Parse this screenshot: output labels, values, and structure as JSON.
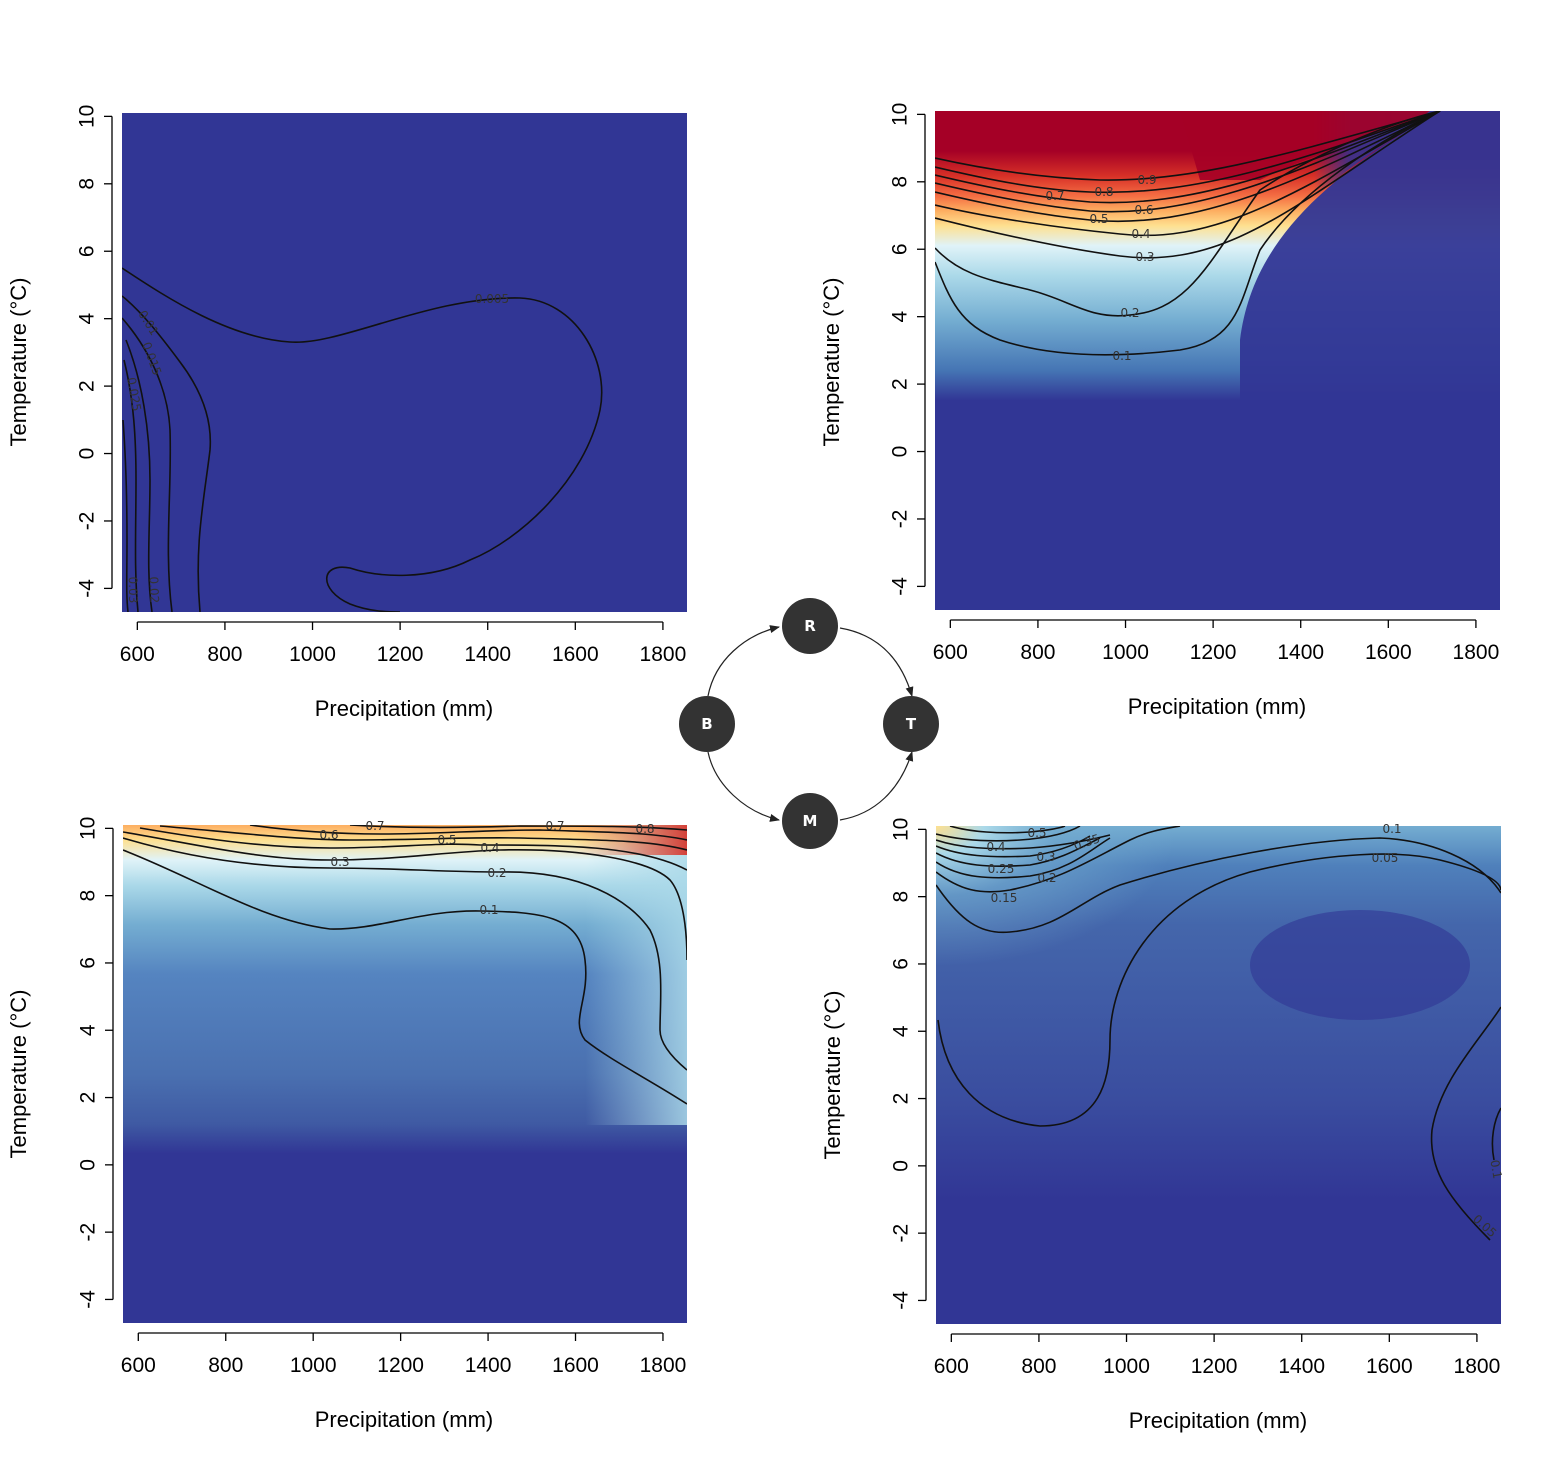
{
  "chart_data": [
    {
      "type": "heatmap",
      "panel": "top-left",
      "xlabel": "Precipitation (mm)",
      "ylabel": "Temperature (°C)",
      "xlim": [
        565,
        1855
      ],
      "ylim": [
        -4.7,
        10.1
      ],
      "xticks": [
        600,
        800,
        1000,
        1200,
        1400,
        1600,
        1800
      ],
      "yticks": [
        -4,
        -2,
        0,
        2,
        4,
        6,
        8,
        10
      ],
      "contour_labels": [
        "0.005",
        "0.01",
        "0.015",
        "0.025",
        "0.02",
        "0.03"
      ]
    },
    {
      "type": "heatmap",
      "panel": "top-right",
      "xlabel": "Precipitation (mm)",
      "ylabel": "Temperature (°C)",
      "xlim": [
        565,
        1855
      ],
      "ylim": [
        -4.7,
        10.1
      ],
      "xticks": [
        600,
        800,
        1000,
        1200,
        1400,
        1600,
        1800
      ],
      "yticks": [
        -4,
        -2,
        0,
        2,
        4,
        6,
        8,
        10
      ],
      "contour_labels": [
        "0.9",
        "0.8",
        "0.7",
        "0.6",
        "0.5",
        "0.4",
        "0.3",
        "0.2",
        "0.1"
      ]
    },
    {
      "type": "heatmap",
      "panel": "bottom-left",
      "xlabel": "Precipitation (mm)",
      "ylabel": "Temperature (°C)",
      "xlim": [
        565,
        1855
      ],
      "ylim": [
        -4.7,
        10.1
      ],
      "xticks": [
        600,
        800,
        1000,
        1200,
        1400,
        1600,
        1800
      ],
      "yticks": [
        -4,
        -2,
        0,
        2,
        4,
        6,
        8,
        10
      ],
      "contour_labels": [
        "0.7",
        "0.6",
        "0.5",
        "0.7",
        "0.8",
        "0.4",
        "0.3",
        "0.2",
        "0.1"
      ]
    },
    {
      "type": "heatmap",
      "panel": "bottom-right",
      "xlabel": "Precipitation (mm)",
      "ylabel": "Temperature (°C)",
      "xlim": [
        565,
        1855
      ],
      "ylim": [
        -4.7,
        10.1
      ],
      "xticks": [
        600,
        800,
        1000,
        1200,
        1400,
        1600,
        1800
      ],
      "yticks": [
        -4,
        -2,
        0,
        2,
        4,
        6,
        8,
        10
      ],
      "contour_labels": [
        "0.5",
        "0.35",
        "0.4",
        "0.3",
        "0.25",
        "0.2",
        "0.15",
        "0.1",
        "0.05",
        "0.1",
        "0.05"
      ]
    }
  ],
  "diagram": {
    "nodes": [
      "B",
      "R",
      "M",
      "T"
    ],
    "edges": [
      [
        "B",
        "R"
      ],
      [
        "R",
        "T"
      ],
      [
        "B",
        "M"
      ],
      [
        "M",
        "T"
      ]
    ]
  },
  "colors": {
    "deep_blue": "#313695",
    "mid_blue": "#4575b4",
    "light_blue": "#74add1",
    "pale_blue": "#abd9e9",
    "pale_yellow": "#fee090",
    "orange": "#fdae61",
    "red_orange": "#f46d43",
    "red": "#d73027",
    "dark_red": "#a50026",
    "node_fill": "#333333"
  }
}
